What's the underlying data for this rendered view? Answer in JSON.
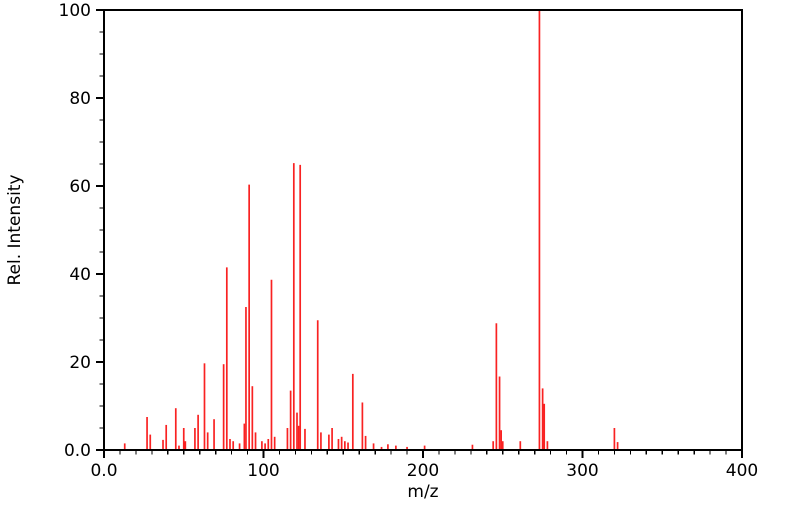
{
  "colors": {
    "background": "#ffffff",
    "axis": "#000000",
    "peak": "#f92222"
  },
  "chart_data": {
    "type": "bar",
    "subtype": "mass-spectrum-stick-plot",
    "title": "",
    "xlabel": "m/z",
    "ylabel": "Rel. Intensity",
    "xlim": [
      0,
      400
    ],
    "ylim": [
      0,
      100
    ],
    "grid": false,
    "frame": "box",
    "legend": "none",
    "x_tick_values": [
      0,
      100,
      200,
      300,
      400
    ],
    "x_tick_labels": [
      "0.0",
      "100",
      "200",
      "300",
      "400"
    ],
    "x_minor_step": 10,
    "y_tick_values": [
      0,
      20,
      40,
      60,
      80,
      100
    ],
    "y_tick_labels": [
      "0.0",
      "20",
      "40",
      "60",
      "80",
      "100"
    ],
    "y_minor_step": 5,
    "peak_color": "#f92222",
    "peaks": [
      [
        13,
        1.5
      ],
      [
        27,
        7.5
      ],
      [
        29,
        3.5
      ],
      [
        37,
        2.3
      ],
      [
        39,
        5.7
      ],
      [
        45,
        9.5
      ],
      [
        47,
        1.0
      ],
      [
        50,
        5.0
      ],
      [
        51,
        2.0
      ],
      [
        57,
        5.0
      ],
      [
        59,
        8.0
      ],
      [
        63,
        19.7
      ],
      [
        65,
        4.0
      ],
      [
        69,
        7.0
      ],
      [
        75,
        19.5
      ],
      [
        77,
        41.5
      ],
      [
        79,
        2.5
      ],
      [
        81,
        2.0
      ],
      [
        85,
        1.5
      ],
      [
        88,
        6.0
      ],
      [
        89,
        32.5
      ],
      [
        91,
        60.3
      ],
      [
        93,
        14.5
      ],
      [
        95,
        4.0
      ],
      [
        99,
        2.0
      ],
      [
        101,
        1.5
      ],
      [
        103,
        2.5
      ],
      [
        105,
        38.7
      ],
      [
        107,
        3.0
      ],
      [
        115,
        5.0
      ],
      [
        117,
        13.5
      ],
      [
        119,
        65.2
      ],
      [
        121,
        8.5
      ],
      [
        122,
        5.5
      ],
      [
        123,
        64.8
      ],
      [
        126,
        4.8
      ],
      [
        134,
        29.5
      ],
      [
        136,
        4.0
      ],
      [
        141,
        3.5
      ],
      [
        143,
        5.0
      ],
      [
        147,
        2.5
      ],
      [
        149,
        3.0
      ],
      [
        151,
        2.0
      ],
      [
        153,
        1.7
      ],
      [
        156,
        17.3
      ],
      [
        162,
        10.8
      ],
      [
        164,
        3.2
      ],
      [
        169,
        1.5
      ],
      [
        174,
        0.7
      ],
      [
        178,
        1.3
      ],
      [
        183,
        1.0
      ],
      [
        190,
        0.7
      ],
      [
        201,
        1.0
      ],
      [
        231,
        1.2
      ],
      [
        244,
        2.0
      ],
      [
        246,
        28.8
      ],
      [
        248,
        16.7
      ],
      [
        249,
        4.5
      ],
      [
        250,
        2.0
      ],
      [
        261,
        2.0
      ],
      [
        273,
        100.0
      ],
      [
        275,
        14.0
      ],
      [
        276,
        10.5
      ],
      [
        278,
        2.0
      ],
      [
        320,
        5.0
      ],
      [
        322,
        1.8
      ]
    ]
  }
}
